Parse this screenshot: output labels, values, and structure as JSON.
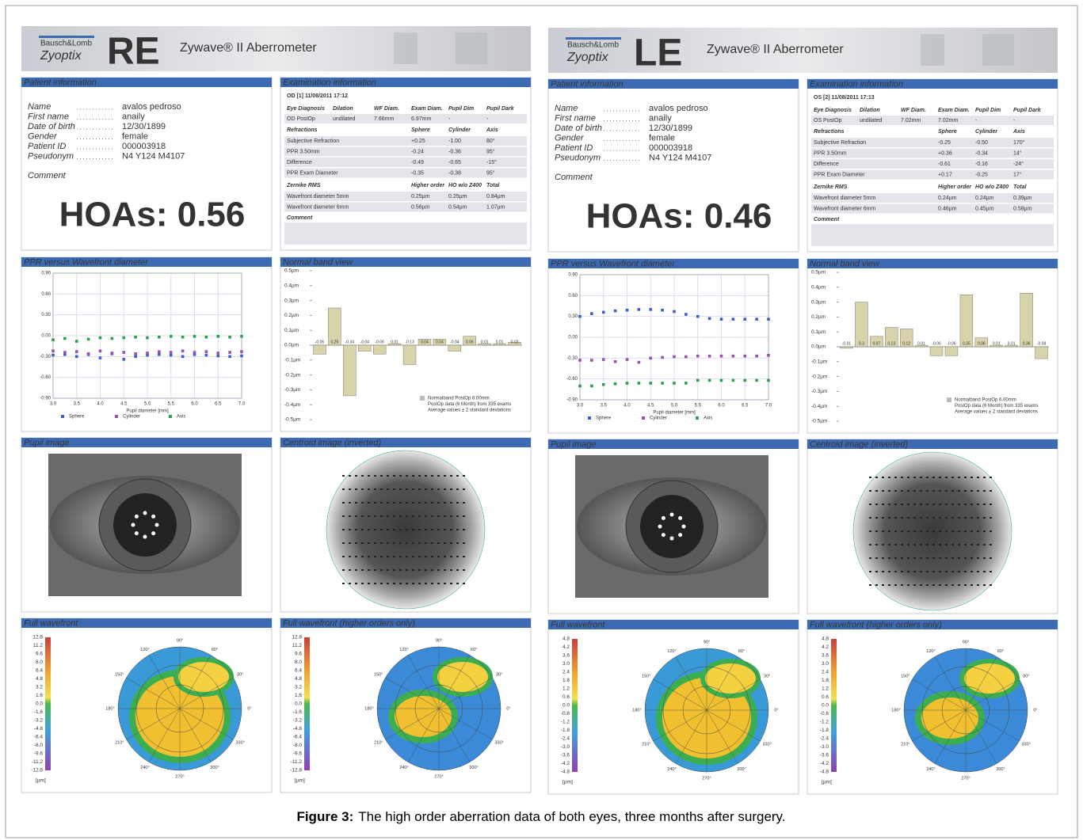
{
  "reports": [
    {
      "brand": "Bausch&Lomb",
      "product_line": "Zyoptix",
      "eye": "RE",
      "eye_color": "#e63a24",
      "device": "Zywave® II Aberrometer",
      "sections": {
        "patient": "Patient information",
        "exam": "Examination information",
        "ppr": "PPR versus Wavefront diameter",
        "band": "Normal band view",
        "pupil": "Pupil image",
        "centroid": "Centroid image (inverted)",
        "wavefront": "Full wavefront",
        "wavefront_ho": "Full wavefront (higher orders only)"
      },
      "patient": {
        "fields": [
          [
            "Name",
            "avalos pedroso"
          ],
          [
            "First name",
            "anaily"
          ],
          [
            "Date of birth",
            "12/30/1899"
          ],
          [
            "Gender",
            "female"
          ],
          [
            "Patient ID",
            "000003918"
          ],
          [
            "Pseudonym",
            "N4 Y124 M4107"
          ]
        ],
        "comment": "Comment"
      },
      "exam": {
        "id": "OD [1] 11/08/2011 17:12",
        "diag_header": [
          "Eye Diagnosis",
          "Dilation",
          "WF Diam.",
          "Exam Diam.",
          "Pupil Dim",
          "Pupil Dark"
        ],
        "diag_row": [
          "OD PostOp",
          "undilated",
          "7.66mm",
          "6.97mm",
          "-",
          "-"
        ],
        "refraction_header": [
          "Refractions",
          "Sphere",
          "Cylinder",
          "Axis"
        ],
        "refraction_rows": [
          [
            "Subjective Refraction",
            "+0.25",
            "-1.00",
            "80°"
          ],
          [
            "PPR 3.50mm",
            "-0.24",
            "-0.36",
            "95°"
          ],
          [
            "Difference",
            "-0.49",
            "-0.65",
            "-15°"
          ],
          [
            "PPR Exam Diameter",
            "-0.35",
            "-0.38",
            "95°"
          ]
        ],
        "rms_header": [
          "Zernike RMS",
          "Higher order",
          "HO w/o Z400",
          "Total"
        ],
        "rms_rows": [
          [
            "Wavefront diameter 5mm",
            "0.25µm",
            "0.25µm",
            "0.84µm"
          ],
          [
            "Wavefront diameter 6mm",
            "0.56µm",
            "0.54µm",
            "1.07µm"
          ]
        ],
        "comment": "Comment"
      },
      "hoas": "HOAs: 0.56",
      "ppr_chart": {
        "type": "scatter",
        "xlabel": "Pupil diameter [mm]",
        "xlim": [
          3,
          7
        ],
        "xticks": [
          {
            "value": 3,
            "label": "3.0"
          },
          {
            "value": 3.5,
            "label": "3.5"
          },
          {
            "value": 4,
            "label": "4.0"
          },
          {
            "value": 4.5,
            "label": "4.5"
          },
          {
            "value": 5,
            "label": "5.0"
          },
          {
            "value": 5.5,
            "label": "5.5"
          },
          {
            "value": 6,
            "label": "6.0"
          },
          {
            "value": 6.5,
            "label": "6.5"
          },
          {
            "value": 7,
            "label": "7.0"
          }
        ],
        "ylim": [
          -0.9,
          0.9
        ],
        "yticks": [
          {
            "value": 0.9,
            "label": "0.90"
          },
          {
            "value": 0.6,
            "label": "0.60"
          },
          {
            "value": 0.3,
            "label": "0.30"
          },
          {
            "value": 0,
            "label": "0.00"
          },
          {
            "value": -0.3,
            "label": "-0.30"
          },
          {
            "value": -0.6,
            "label": "-0.60"
          },
          {
            "value": -0.9,
            "label": "-0.90"
          }
        ],
        "x": [
          3,
          3.25,
          3.5,
          3.75,
          4,
          4.25,
          4.5,
          4.75,
          5,
          5.25,
          5.5,
          5.75,
          6,
          6.25,
          6.5,
          6.75,
          7
        ],
        "series": [
          {
            "name": "Sphere",
            "color": "#3a5fd0",
            "values": [
              -0.28,
              -0.27,
              -0.3,
              -0.27,
              -0.32,
              -0.26,
              -0.34,
              -0.3,
              -0.28,
              -0.27,
              -0.28,
              -0.3,
              -0.27,
              -0.28,
              -0.29,
              -0.3,
              -0.29
            ]
          },
          {
            "name": "Cylinder",
            "color": "#9b4fb0",
            "values": [
              -0.22,
              -0.24,
              -0.23,
              -0.26,
              -0.22,
              -0.25,
              -0.24,
              -0.26,
              -0.25,
              -0.23,
              -0.24,
              -0.22,
              -0.24,
              -0.23,
              -0.25,
              -0.24,
              -0.23
            ]
          },
          {
            "name": "Axis",
            "color": "#2e9e55",
            "values": [
              -0.06,
              -0.04,
              -0.08,
              -0.05,
              -0.03,
              -0.04,
              -0.03,
              -0.02,
              -0.03,
              -0.02,
              -0.01,
              -0.02,
              -0.01,
              -0.02,
              -0.01,
              -0.02,
              -0.01
            ]
          }
        ]
      },
      "band_chart": {
        "type": "bar",
        "ylim": [
          -0.5,
          0.5
        ],
        "yticks": [
          {
            "value": 0.5,
            "label": "0.5µm"
          },
          {
            "value": 0.4,
            "label": "0.4µm"
          },
          {
            "value": 0.3,
            "label": "0.3µm"
          },
          {
            "value": 0.2,
            "label": "0.2µm"
          },
          {
            "value": 0.1,
            "label": "0.1µm"
          },
          {
            "value": 0,
            "label": "0.0µm"
          },
          {
            "value": -0.1,
            "label": "-0.1µm"
          },
          {
            "value": -0.2,
            "label": "-0.2µm"
          },
          {
            "value": -0.3,
            "label": "-0.3µm"
          },
          {
            "value": -0.4,
            "label": "-0.4µm"
          },
          {
            "value": -0.5,
            "label": "-0.5µm"
          }
        ],
        "values": [
          -0.06,
          0.25,
          -0.34,
          -0.04,
          -0.06,
          0.01,
          -0.13,
          0.04,
          0.04,
          -0.04,
          0.06,
          0.01,
          0.01,
          0.02
        ],
        "legend": [
          "Normalband PostOp 6.00mm",
          "PostOp data (6 Month) from 335 exams",
          "Average values ± 2 standard deviations"
        ]
      },
      "colorbar": {
        "ticks": [
          "12.8",
          "11.2",
          "9.6",
          "8.0",
          "6.4",
          "4.8",
          "3.2",
          "1.6",
          "0.0",
          "-1.6",
          "-3.2",
          "-4.8",
          "-6.4",
          "-8.0",
          "-9.6",
          "-11.2",
          "-12.8"
        ],
        "unit": "[µm]"
      }
    },
    {
      "brand": "Bausch&Lomb",
      "product_line": "Zyoptix",
      "eye": "LE",
      "eye_color": "#2fae7e",
      "device": "Zywave® II Aberrometer",
      "sections": {
        "patient": "Patient information",
        "exam": "Examination information",
        "ppr": "PPR versus Wavefront diameter",
        "band": "Normal band view",
        "pupil": "Pupil image",
        "centroid": "Centroid image (inverted)",
        "wavefront": "Full wavefront",
        "wavefront_ho": "Full wavefront (higher orders only)"
      },
      "patient": {
        "fields": [
          [
            "Name",
            "avalos pedroso"
          ],
          [
            "First name",
            "anaily"
          ],
          [
            "Date of birth",
            "12/30/1899"
          ],
          [
            "Gender",
            "female"
          ],
          [
            "Patient ID",
            "000003918"
          ],
          [
            "Pseudonym",
            "N4 Y124 M4107"
          ]
        ],
        "comment": "Comment"
      },
      "exam": {
        "id": "OS [2] 11/08/2011 17:13",
        "diag_header": [
          "Eye Diagnosis",
          "Dilation",
          "WF Diam.",
          "Exam Diam.",
          "Pupil Dim",
          "Pupil Dark"
        ],
        "diag_row": [
          "OS PostOp",
          "undilated",
          "7.02mm",
          "7.02mm",
          "-",
          "-"
        ],
        "refraction_header": [
          "Refractions",
          "Sphere",
          "Cylinder",
          "Axis"
        ],
        "refraction_rows": [
          [
            "Subjective Refraction",
            "-0.25",
            "-0.50",
            "170°"
          ],
          [
            "PPR 3.50mm",
            "+0.36",
            "-0.34",
            "14°"
          ],
          [
            "Difference",
            "-0.61",
            "-0.16",
            "-24°"
          ],
          [
            "PPR Exam Diameter",
            "+0.17",
            "-0.25",
            "17°"
          ]
        ],
        "rms_header": [
          "Zernike RMS",
          "Higher order",
          "HO w/o Z400",
          "Total"
        ],
        "rms_rows": [
          [
            "Wavefront diameter 5mm",
            "0.24µm",
            "0.24µm",
            "0.39µm"
          ],
          [
            "Wavefront diameter 6mm",
            "0.46µm",
            "0.45µm",
            "0.58µm"
          ]
        ],
        "comment": "Comment"
      },
      "hoas": "HOAs: 0.46",
      "ppr_chart": {
        "type": "scatter",
        "xlabel": "Pupil diameter [mm]",
        "xlim": [
          3,
          7
        ],
        "xticks": [
          {
            "value": 3,
            "label": "3.0"
          },
          {
            "value": 3.5,
            "label": "3.5"
          },
          {
            "value": 4,
            "label": "4.0"
          },
          {
            "value": 4.5,
            "label": "4.5"
          },
          {
            "value": 5,
            "label": "5.0"
          },
          {
            "value": 5.5,
            "label": "5.5"
          },
          {
            "value": 6,
            "label": "6.0"
          },
          {
            "value": 6.5,
            "label": "6.5"
          },
          {
            "value": 7,
            "label": "7.0"
          }
        ],
        "ylim": [
          -0.9,
          0.9
        ],
        "yticks": [
          {
            "value": 0.9,
            "label": "0.90"
          },
          {
            "value": 0.6,
            "label": "0.60"
          },
          {
            "value": 0.3,
            "label": "0.30"
          },
          {
            "value": 0,
            "label": "0.00"
          },
          {
            "value": -0.3,
            "label": "-0.30"
          },
          {
            "value": -0.6,
            "label": "-0.60"
          },
          {
            "value": -0.9,
            "label": "-0.90"
          }
        ],
        "x": [
          3,
          3.25,
          3.5,
          3.75,
          4,
          4.25,
          4.5,
          4.75,
          5,
          5.25,
          5.5,
          5.75,
          6,
          6.25,
          6.5,
          6.75,
          7
        ],
        "series": [
          {
            "name": "Sphere",
            "color": "#3a5fd0",
            "values": [
              0.3,
              0.34,
              0.36,
              0.38,
              0.39,
              0.4,
              0.4,
              0.39,
              0.37,
              0.33,
              0.3,
              0.27,
              0.26,
              0.26,
              0.26,
              0.26,
              0.26
            ]
          },
          {
            "name": "Cylinder",
            "color": "#9b4fb0",
            "values": [
              -0.33,
              -0.33,
              -0.32,
              -0.35,
              -0.32,
              -0.36,
              -0.3,
              -0.29,
              -0.28,
              -0.28,
              -0.27,
              -0.27,
              -0.27,
              -0.27,
              -0.27,
              -0.27,
              -0.26
            ]
          },
          {
            "name": "Axis",
            "color": "#2e9e55",
            "values": [
              -0.7,
              -0.7,
              -0.68,
              -0.67,
              -0.66,
              -0.66,
              -0.66,
              -0.66,
              -0.66,
              -0.66,
              -0.62,
              -0.62,
              -0.62,
              -0.62,
              -0.62,
              -0.62,
              -0.62
            ]
          }
        ]
      },
      "band_chart": {
        "type": "bar",
        "ylim": [
          -0.5,
          0.5
        ],
        "yticks": [
          {
            "value": 0.5,
            "label": "0.5µm"
          },
          {
            "value": 0.4,
            "label": "0.4µm"
          },
          {
            "value": 0.3,
            "label": "0.3µm"
          },
          {
            "value": 0.2,
            "label": "0.2µm"
          },
          {
            "value": 0.1,
            "label": "0.1µm"
          },
          {
            "value": 0,
            "label": "0.0µm"
          },
          {
            "value": -0.1,
            "label": "-0.1µm"
          },
          {
            "value": -0.2,
            "label": "-0.2µm"
          },
          {
            "value": -0.3,
            "label": "-0.3µm"
          },
          {
            "value": -0.4,
            "label": "-0.4µm"
          },
          {
            "value": -0.5,
            "label": "-0.5µm"
          }
        ],
        "values": [
          -0.01,
          0.3,
          0.07,
          0.13,
          0.12,
          0.01,
          -0.06,
          -0.06,
          0.35,
          0.06,
          0.01,
          0.01,
          0.36,
          -0.08
        ],
        "legend": [
          "Normalband PostOp 6.00mm",
          "PostOp data (6 Month) from 335 exams",
          "Average values ± 2 standard deviations"
        ]
      },
      "colorbar": {
        "ticks": [
          "4.8",
          "4.2",
          "3.6",
          "3.0",
          "2.4",
          "1.8",
          "1.2",
          "0.6",
          "0.0",
          "-0.6",
          "-1.2",
          "-1.8",
          "-2.4",
          "-3.0",
          "-3.6",
          "-4.2",
          "-4.8"
        ],
        "unit": "[µm]"
      }
    }
  ],
  "polar_angles": [
    "90°",
    "120°",
    "150°",
    "180°",
    "210°",
    "240°",
    "270°",
    "300°",
    "330°",
    "0°",
    "30°",
    "60°"
  ],
  "caption": {
    "label": "Figure 3:",
    "text": "The high order aberration data of both eyes, three months after surgery."
  }
}
